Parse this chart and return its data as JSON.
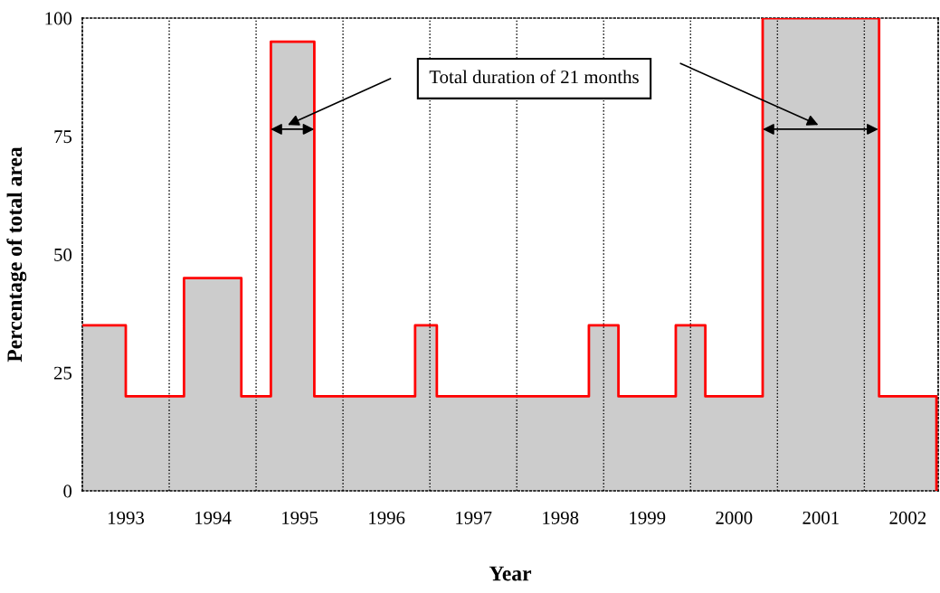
{
  "chart_data": {
    "type": "step",
    "xlabel": "Year",
    "ylabel": "Percentage of total area",
    "annotations": [
      "Total duration of 21 months"
    ],
    "series": [
      {
        "color": "#ff0000",
        "x": [
          1993.0,
          1993.5,
          1994.17,
          1994.83,
          1995.17,
          1995.67,
          1996.83,
          1997.08,
          1998.83,
          1999.17,
          1999.83,
          2000.17,
          2000.83,
          2002.17,
          2002.83
        ],
        "values": [
          35,
          20,
          45,
          20,
          95,
          20,
          35,
          20,
          35,
          20,
          35,
          20,
          100,
          20,
          0
        ]
      }
    ],
    "xlim": [
      1993.0,
      2002.85
    ],
    "ylim": [
      0,
      100
    ],
    "xticks": [
      {
        "value": 1993.5,
        "label": "1993"
      },
      {
        "value": 1994.5,
        "label": "1994"
      },
      {
        "value": 1995.5,
        "label": "1995"
      },
      {
        "value": 1996.5,
        "label": "1996"
      },
      {
        "value": 1997.5,
        "label": "1997"
      },
      {
        "value": 1998.5,
        "label": "1998"
      },
      {
        "value": 1999.5,
        "label": "1999"
      },
      {
        "value": 2000.5,
        "label": "2000"
      },
      {
        "value": 2001.5,
        "label": "2001"
      },
      {
        "value": 2002.5,
        "label": "2002"
      }
    ],
    "yticks": [
      0,
      25,
      50,
      75,
      100
    ],
    "ref_lines": [
      {
        "axis": "x",
        "value": 1994,
        "color": "#000000",
        "line_style": "dotted"
      },
      {
        "axis": "x",
        "value": 1995,
        "color": "#000000",
        "line_style": "dotted"
      },
      {
        "axis": "x",
        "value": 1996,
        "color": "#000000",
        "line_style": "dotted"
      },
      {
        "axis": "x",
        "value": 1997,
        "color": "#000000",
        "line_style": "dotted"
      },
      {
        "axis": "x",
        "value": 1998,
        "color": "#000000",
        "line_style": "dotted"
      },
      {
        "axis": "x",
        "value": 1999,
        "color": "#000000",
        "line_style": "dotted"
      },
      {
        "axis": "x",
        "value": 2000,
        "color": "#000000",
        "line_style": "dotted"
      },
      {
        "axis": "x",
        "value": 2001,
        "color": "#000000",
        "line_style": "dotted"
      },
      {
        "axis": "x",
        "value": 2002,
        "color": "#000000",
        "line_style": "dotted"
      }
    ]
  }
}
